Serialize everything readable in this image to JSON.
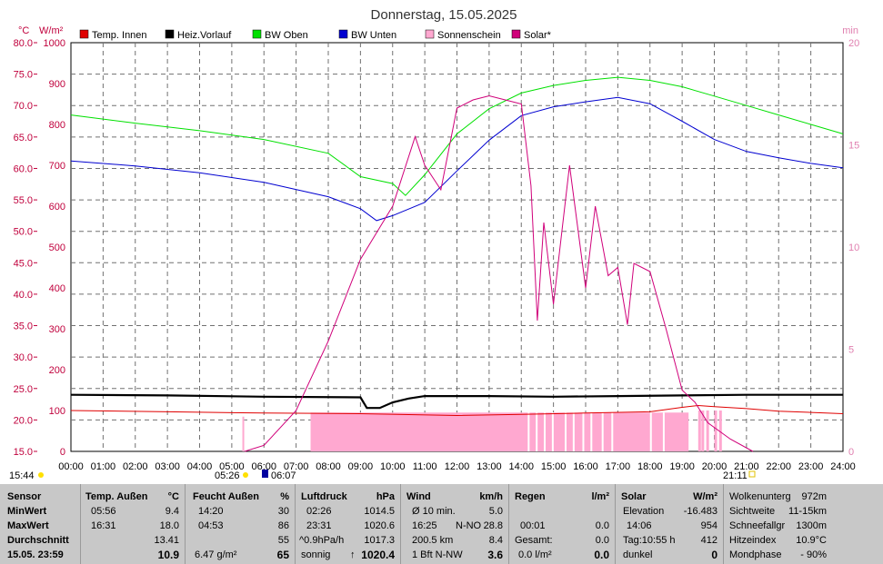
{
  "title": "Donnerstag, 15.05.2025",
  "legend": [
    {
      "name": "Temp. Innen",
      "color": "#e00000"
    },
    {
      "name": "Heiz.Vorlauf",
      "color": "#000000"
    },
    {
      "name": "BW Oben",
      "color": "#00e000"
    },
    {
      "name": "BW Unten",
      "color": "#0000d0"
    },
    {
      "name": "Sonnenschein",
      "color": "#ffa8d0"
    },
    {
      "name": "Solar*",
      "color": "#d0007a"
    }
  ],
  "chart_data": {
    "type": "line",
    "title": "Donnerstag, 15.05.2025",
    "axes": {
      "temp": {
        "unit": "°C",
        "range": [
          15,
          80
        ],
        "ticks": [
          "15.0",
          "20.0",
          "25.0",
          "30.0",
          "35.0",
          "40.0",
          "45.0",
          "50.0",
          "55.0",
          "60.0",
          "65.0",
          "70.0",
          "75.0",
          "80.0"
        ]
      },
      "solar": {
        "unit": "W/m²",
        "range": [
          0,
          1000
        ],
        "ticks": [
          "0",
          "100",
          "200",
          "300",
          "400",
          "500",
          "600",
          "700",
          "800",
          "900",
          "1000"
        ]
      },
      "sunshine": {
        "unit": "min",
        "range": [
          0,
          20
        ],
        "ticks": [
          "0",
          "5",
          "10",
          "15",
          "20"
        ]
      },
      "x": {
        "ticks": [
          "00:00",
          "01:00",
          "02:00",
          "03:00",
          "04:00",
          "05:00",
          "06:00",
          "07:00",
          "08:00",
          "09:00",
          "10:00",
          "11:00",
          "12:00",
          "13:00",
          "14:00",
          "15:00",
          "16:00",
          "17:00",
          "18:00",
          "19:00",
          "20:00",
          "21:00",
          "22:00",
          "23:00",
          "24:00"
        ]
      }
    },
    "series": [
      {
        "name": "BW Oben",
        "axis": "temp",
        "color": "#00e000",
        "x": [
          0,
          2,
          4,
          6,
          8,
          9,
          10,
          10.4,
          11,
          12,
          13,
          14,
          15,
          16,
          17,
          18,
          19,
          20,
          21,
          22,
          23,
          24
        ],
        "y": [
          68.5,
          67.2,
          66.0,
          64.6,
          62.4,
          58.7,
          57.6,
          55.7,
          59.0,
          65.5,
          69.5,
          72.0,
          73.2,
          74.0,
          74.5,
          74.0,
          73.0,
          71.5,
          70.0,
          68.5,
          67.0,
          65.5
        ]
      },
      {
        "name": "BW Unten",
        "axis": "temp",
        "color": "#0000d0",
        "x": [
          0,
          2,
          4,
          6,
          8,
          9,
          9.5,
          10,
          11,
          12,
          13,
          14,
          15,
          16,
          17,
          18,
          19,
          20,
          21,
          22,
          23,
          24
        ],
        "y": [
          61.2,
          60.4,
          59.3,
          57.8,
          55.5,
          53.6,
          51.7,
          52.5,
          54.6,
          59.6,
          64.5,
          68.4,
          69.8,
          70.6,
          71.3,
          70.3,
          67.5,
          64.6,
          62.7,
          61.7,
          60.8,
          60.1
        ]
      },
      {
        "name": "Heiz.Vorlauf",
        "axis": "temp",
        "color": "#000000",
        "x": [
          0,
          3,
          6,
          9,
          9.2,
          9.6,
          10,
          10.5,
          11,
          13,
          15,
          17,
          19,
          21,
          24
        ],
        "y": [
          24.0,
          23.9,
          23.7,
          23.6,
          21.9,
          21.9,
          22.8,
          23.4,
          23.8,
          23.8,
          23.7,
          23.8,
          23.9,
          24.0,
          24.0
        ]
      },
      {
        "name": "Temp. Innen",
        "axis": "temp",
        "color": "#e00000",
        "x": [
          0,
          3,
          6,
          9,
          12,
          14,
          16,
          18,
          19,
          19.5,
          20,
          21,
          22,
          24
        ],
        "y": [
          21.5,
          21.3,
          21.1,
          21.0,
          20.7,
          20.9,
          21.1,
          21.3,
          22.0,
          22.3,
          22.1,
          21.8,
          21.4,
          21.0
        ]
      },
      {
        "name": "Solar*",
        "axis": "solar",
        "color": "#d0007a",
        "x": [
          5.4,
          6,
          7,
          8,
          9,
          10,
          10.7,
          11,
          11.5,
          12,
          12.5,
          13,
          13.5,
          14,
          14.3,
          14.5,
          14.7,
          15,
          15.5,
          16,
          16.3,
          16.7,
          17,
          17.3,
          17.5,
          18,
          18.5,
          19,
          19.4,
          19.8,
          20.5,
          21.2
        ],
        "y": [
          0,
          15,
          100,
          270,
          470,
          600,
          770,
          700,
          640,
          840,
          860,
          870,
          860,
          850,
          650,
          320,
          560,
          360,
          700,
          400,
          600,
          430,
          450,
          310,
          460,
          440,
          300,
          150,
          120,
          70,
          30,
          0
        ]
      },
      {
        "name": "Sonnenschein",
        "axis": "sunshine",
        "color": "#ffa8d0",
        "x": [
          5.33,
          7.45,
          13.95,
          14,
          19.2,
          19.2,
          19.5,
          19.6,
          19.75,
          20.0,
          20.15
        ],
        "y": [
          1.7,
          1.9,
          1.9,
          2.0,
          2.0,
          0,
          2.0,
          2.0,
          2.0,
          2.0,
          2.0
        ]
      }
    ]
  },
  "time_markers": {
    "left": "15:44",
    "sunrise": "05:26",
    "solar_start": "06:07",
    "sunset": "21:11"
  },
  "stats": {
    "sensor": {
      "header": "Sensor",
      "rows": [
        "MinWert",
        "MaxWert",
        "Durchschnitt",
        "15.05. 23:59"
      ]
    },
    "temp": {
      "header": "Temp. Außen",
      "unit": "°C",
      "rows": [
        [
          "05:56",
          "9.4"
        ],
        [
          "16:31",
          "18.0"
        ],
        [
          "",
          "13.41"
        ],
        [
          "",
          "10.9"
        ]
      ]
    },
    "humidity": {
      "header": "Feucht Außen",
      "unit": "%",
      "rows": [
        [
          "14:20",
          "30"
        ],
        [
          "04:53",
          "86"
        ],
        [
          "",
          "55"
        ],
        [
          "6.47 g/m²",
          "65"
        ]
      ]
    },
    "pressure": {
      "header": "Luftdruck",
      "unit": "hPa",
      "rows": [
        [
          "02:26",
          "1014.5"
        ],
        [
          "23:31",
          "1020.6"
        ],
        [
          "^0.9hPa/h",
          "1017.3"
        ],
        [
          "sonnig",
          "1020.4"
        ]
      ]
    },
    "wind": {
      "header": "Wind",
      "unit": "km/h",
      "rows": [
        [
          "Ø 10 min.",
          "",
          "5.0"
        ],
        [
          "16:25",
          "N-NO",
          "28.8"
        ],
        [
          "200.5 km",
          "",
          "8.4"
        ],
        [
          "1 Bft N-NW",
          "",
          "3.6"
        ]
      ]
    },
    "rain": {
      "header": "Regen",
      "unit": "l/m²",
      "rows": [
        [
          "",
          ""
        ],
        [
          "00:01",
          "0.0"
        ],
        [
          "Gesamt:",
          "0.0"
        ],
        [
          "0.0 l/m²",
          "0.0"
        ]
      ]
    },
    "solar": {
      "header": "Solar",
      "unit": "W/m²",
      "rows": [
        [
          "Elevation",
          "-16.483"
        ],
        [
          "14:06",
          "954"
        ],
        [
          "Tag:10:55 h",
          "412"
        ],
        [
          "dunkel",
          "0"
        ]
      ]
    },
    "extra": {
      "rows": [
        [
          "Wolkenunterg",
          "972m"
        ],
        [
          "Sichtweite",
          "11-15km"
        ],
        [
          "Schneefallgr",
          "1300m"
        ],
        [
          "Hitzeindex",
          "10.9°C"
        ],
        [
          "Mondphase",
          "- 90%"
        ]
      ]
    }
  }
}
